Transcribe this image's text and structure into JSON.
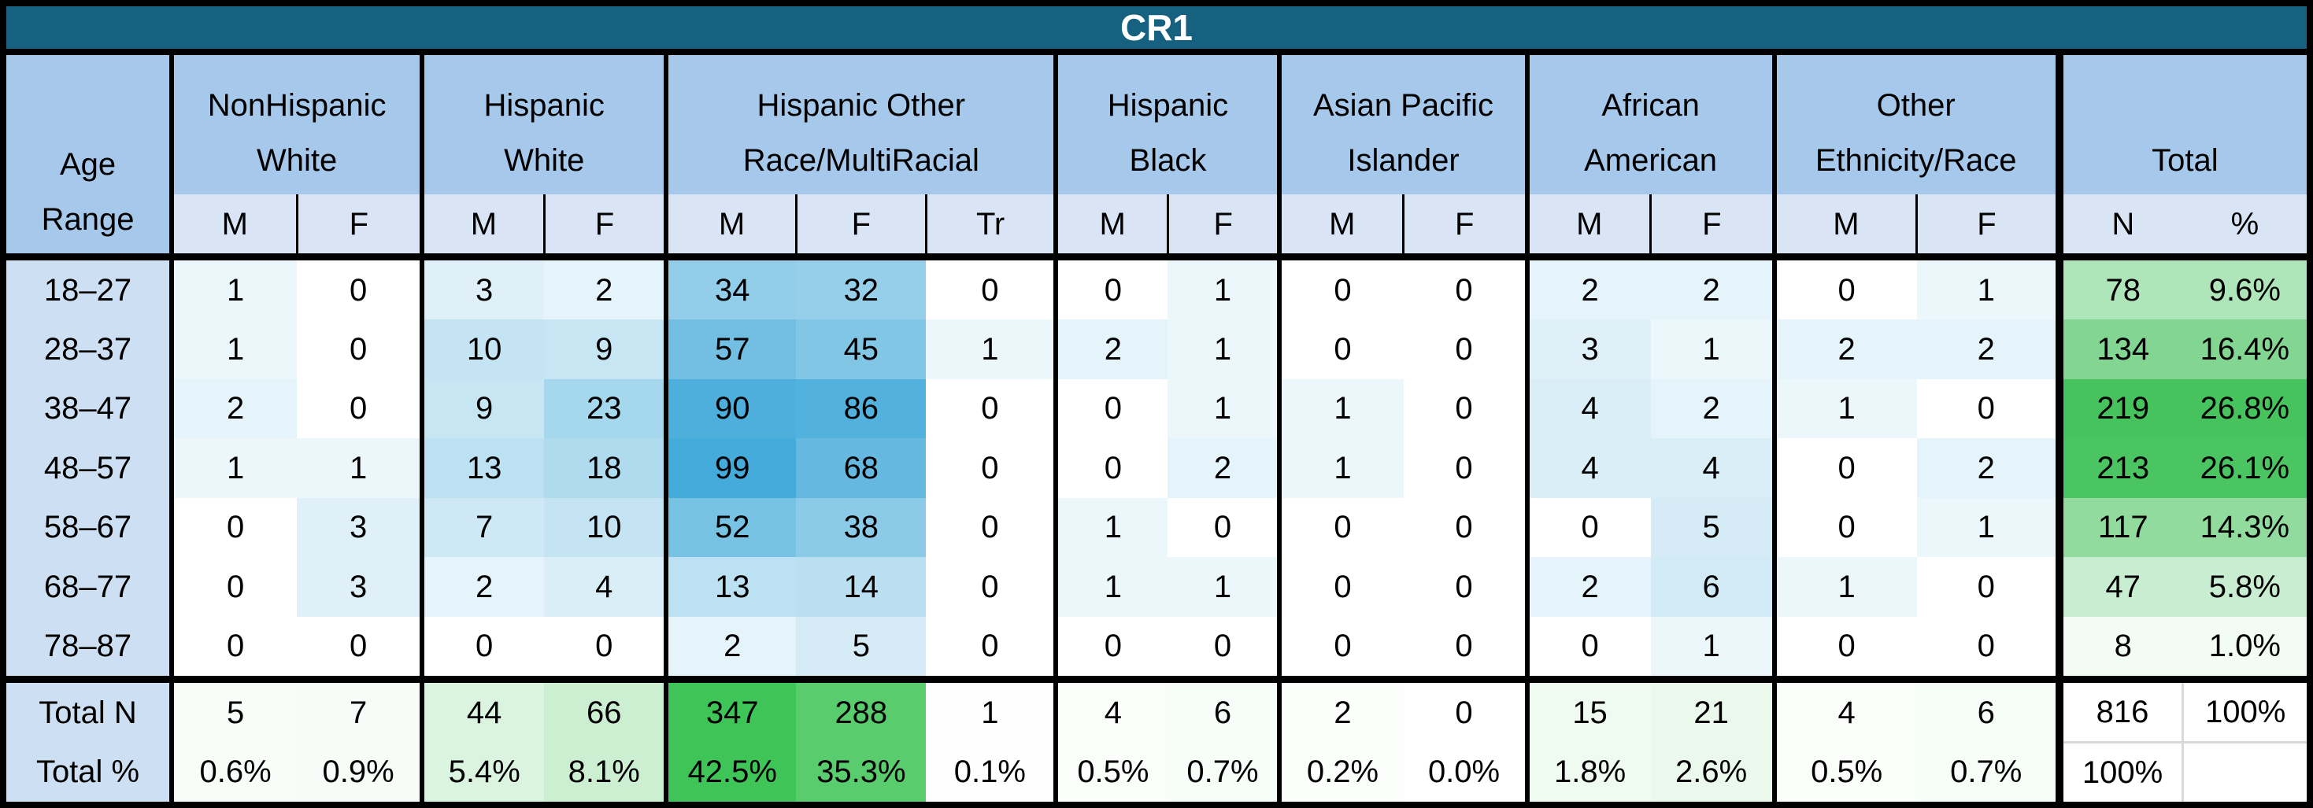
{
  "colors": {
    "title_bg": "#166080",
    "title_text": "#ffffff",
    "header_group_bg": "#a6c8ea",
    "header_sub_bg": "#d9e5f5",
    "age_col_bg": "#cddff2",
    "border": "#000000",
    "grid_light": "#d9d9d9",
    "heat_blue_max": "#45abda",
    "heat_green_row_max": "#47c35e",
    "heat_green_total_max": "#3ec457"
  },
  "chart_data": {
    "type": "table",
    "title": "CR1",
    "row_header": {
      "line1": "Age",
      "line2": "Range"
    },
    "groups": [
      {
        "label": [
          "NonHispanic",
          "White"
        ],
        "subcols": [
          "M",
          "F"
        ]
      },
      {
        "label": [
          "Hispanic",
          "White"
        ],
        "subcols": [
          "M",
          "F"
        ]
      },
      {
        "label": [
          "Hispanic Other",
          "Race/MultiRacial"
        ],
        "subcols": [
          "M",
          "F",
          "Tr"
        ]
      },
      {
        "label": [
          "Hispanic",
          "Black"
        ],
        "subcols": [
          "M",
          "F"
        ]
      },
      {
        "label": [
          "Asian Pacific",
          "Islander"
        ],
        "subcols": [
          "M",
          "F"
        ]
      },
      {
        "label": [
          "African",
          "American"
        ],
        "subcols": [
          "M",
          "F"
        ]
      },
      {
        "label": [
          "Other",
          "Ethnicity/Race"
        ],
        "subcols": [
          "M",
          "F"
        ]
      },
      {
        "label": [
          "",
          "Total"
        ],
        "subcols": [
          "N",
          "%"
        ]
      }
    ],
    "rows": [
      {
        "age": "18–27",
        "cells": [
          1,
          0,
          3,
          2,
          34,
          32,
          0,
          0,
          1,
          0,
          0,
          2,
          2,
          0,
          1
        ],
        "total_n": 78,
        "total_pct": "9.6%"
      },
      {
        "age": "28–37",
        "cells": [
          1,
          0,
          10,
          9,
          57,
          45,
          1,
          2,
          1,
          0,
          0,
          3,
          1,
          2,
          2
        ],
        "total_n": 134,
        "total_pct": "16.4%"
      },
      {
        "age": "38–47",
        "cells": [
          2,
          0,
          9,
          23,
          90,
          86,
          0,
          0,
          1,
          1,
          0,
          4,
          2,
          1,
          0
        ],
        "total_n": 219,
        "total_pct": "26.8%"
      },
      {
        "age": "48–57",
        "cells": [
          1,
          1,
          13,
          18,
          99,
          68,
          0,
          0,
          2,
          1,
          0,
          4,
          4,
          0,
          2
        ],
        "total_n": 213,
        "total_pct": "26.1%"
      },
      {
        "age": "58–67",
        "cells": [
          0,
          3,
          7,
          10,
          52,
          38,
          0,
          1,
          0,
          0,
          0,
          0,
          5,
          0,
          1
        ],
        "total_n": 117,
        "total_pct": "14.3%"
      },
      {
        "age": "68–77",
        "cells": [
          0,
          3,
          2,
          4,
          13,
          14,
          0,
          1,
          1,
          0,
          0,
          2,
          6,
          1,
          0
        ],
        "total_n": 47,
        "total_pct": "5.8%"
      },
      {
        "age": "78–87",
        "cells": [
          0,
          0,
          0,
          0,
          2,
          5,
          0,
          0,
          0,
          0,
          0,
          0,
          1,
          0,
          0
        ],
        "total_n": 8,
        "total_pct": "1.0%"
      }
    ],
    "total_n_row": {
      "label": "Total N",
      "cells": [
        5,
        7,
        44,
        66,
        347,
        288,
        1,
        4,
        6,
        2,
        0,
        15,
        21,
        4,
        6
      ],
      "total_n": 816,
      "total_pct": "100%"
    },
    "total_pct_row": {
      "label": "Total %",
      "cells": [
        "0.6%",
        "0.9%",
        "5.4%",
        "8.1%",
        "42.5%",
        "35.3%",
        "0.1%",
        "0.5%",
        "0.7%",
        "0.2%",
        "0.0%",
        "1.8%",
        "2.6%",
        "0.5%",
        "0.7%"
      ],
      "total_n": "100%",
      "total_pct": ""
    }
  }
}
